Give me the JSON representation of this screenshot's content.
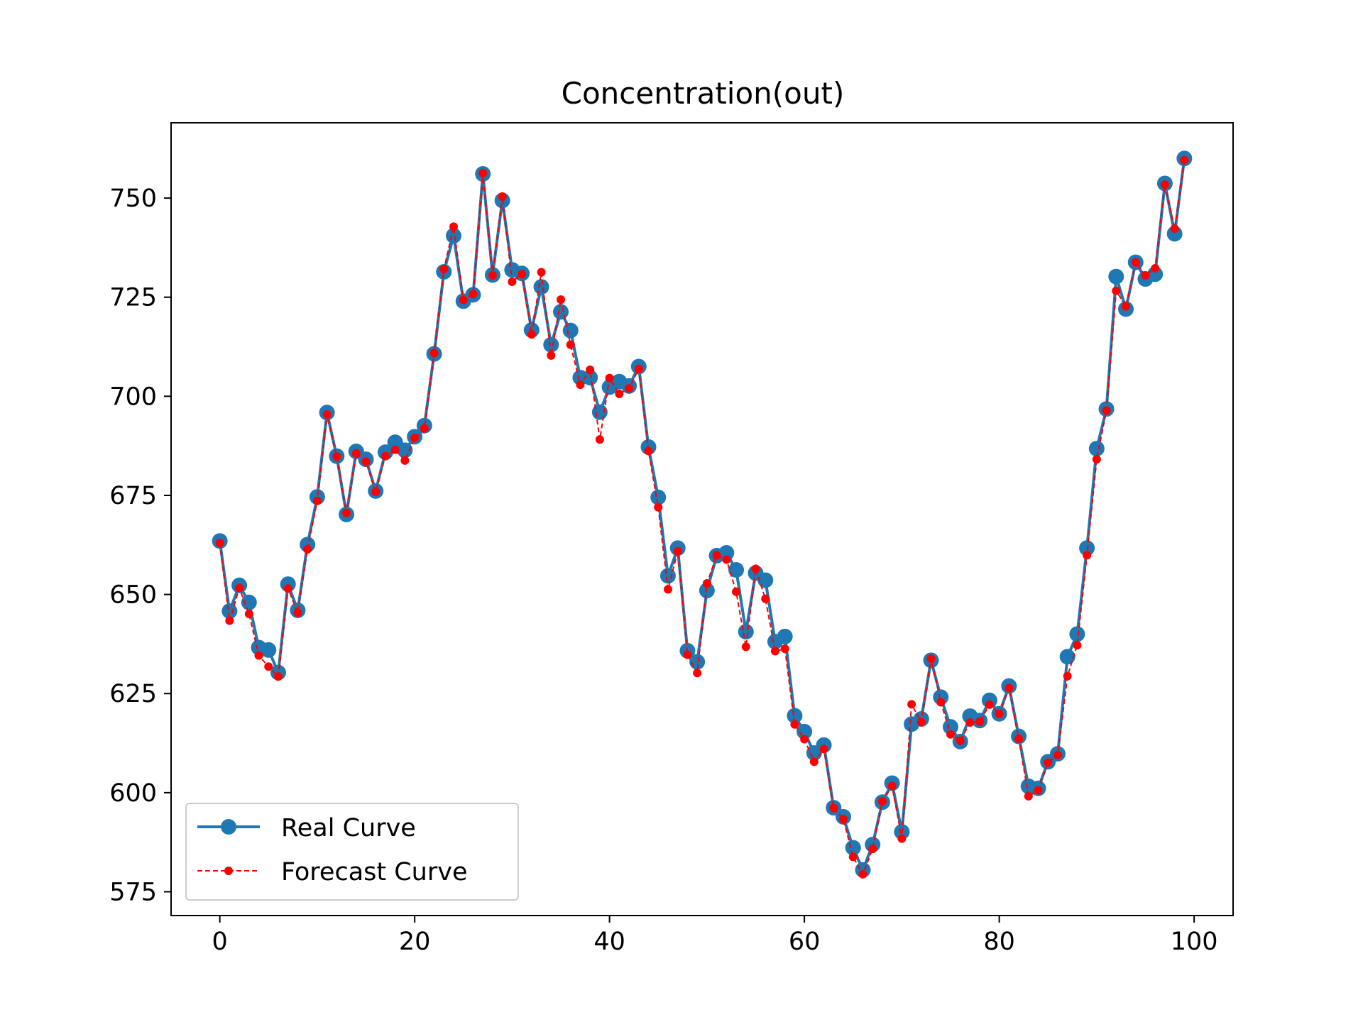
{
  "chart_data": {
    "type": "line",
    "title": "Concentration(out)",
    "xlabel": "",
    "ylabel": "",
    "xlim": [
      -5,
      104
    ],
    "ylim": [
      569,
      769
    ],
    "xticks": [
      0,
      20,
      40,
      60,
      80,
      100
    ],
    "yticks": [
      575,
      600,
      625,
      650,
      675,
      700,
      725,
      750
    ],
    "grid": false,
    "legend_position": "lower-left",
    "x": [
      0,
      1,
      2,
      3,
      4,
      5,
      6,
      7,
      8,
      9,
      10,
      11,
      12,
      13,
      14,
      15,
      16,
      17,
      18,
      19,
      20,
      21,
      22,
      23,
      24,
      25,
      26,
      27,
      28,
      29,
      30,
      31,
      32,
      33,
      34,
      35,
      36,
      37,
      38,
      39,
      40,
      41,
      42,
      43,
      44,
      45,
      46,
      47,
      48,
      49,
      50,
      51,
      52,
      53,
      54,
      55,
      56,
      57,
      58,
      59,
      60,
      61,
      62,
      63,
      64,
      65,
      66,
      67,
      68,
      69,
      70,
      71,
      72,
      73,
      74,
      75,
      76,
      77,
      78,
      79,
      80,
      81,
      82,
      83,
      84,
      85,
      86,
      87,
      88,
      89,
      90,
      91,
      92,
      93,
      94,
      95,
      96,
      97,
      98,
      99
    ],
    "series": [
      {
        "name": "Real Curve",
        "color": "#1f77b4",
        "style": "solid",
        "marker": "circle-large",
        "values": [
          663.5,
          645.8,
          652.3,
          648.0,
          636.6,
          636.0,
          630.3,
          652.6,
          646.0,
          662.6,
          674.6,
          695.9,
          684.9,
          670.2,
          686.1,
          684.1,
          676.1,
          685.9,
          688.4,
          686.4,
          689.8,
          692.6,
          710.7,
          731.4,
          740.5,
          724.0,
          725.6,
          756.1,
          730.6,
          749.4,
          731.9,
          731.0,
          716.7,
          727.6,
          713.0,
          721.3,
          716.6,
          704.7,
          704.7,
          696.0,
          702.3,
          703.7,
          702.6,
          707.5,
          687.2,
          674.5,
          654.7,
          661.7,
          635.8,
          633.0,
          651.0,
          659.8,
          660.5,
          656.2,
          640.6,
          655.4,
          653.6,
          638.1,
          639.4,
          619.4,
          615.4,
          610.0,
          612.0,
          596.2,
          593.9,
          586.1,
          580.5,
          586.9,
          597.6,
          602.4,
          590.1,
          617.3,
          618.6,
          633.4,
          624.1,
          616.6,
          612.9,
          619.3,
          618.2,
          623.3,
          619.9,
          626.9,
          614.2,
          601.6,
          601.1,
          607.8,
          609.8,
          634.3,
          640.0,
          661.7,
          686.8,
          696.8,
          730.2,
          722.0,
          733.8,
          729.6,
          730.8,
          753.7,
          741.0,
          760.0
        ]
      },
      {
        "name": "Forecast Curve",
        "color": "#ff0000",
        "style": "dashed",
        "marker": "circle-small",
        "values": [
          663.0,
          643.4,
          651.6,
          645.1,
          634.6,
          631.8,
          629.3,
          651.5,
          645.4,
          661.4,
          673.6,
          695.4,
          684.8,
          670.6,
          685.6,
          683.5,
          675.9,
          684.9,
          686.5,
          683.8,
          689.5,
          691.9,
          710.9,
          732.1,
          742.8,
          724.3,
          725.8,
          756.3,
          730.5,
          750.4,
          728.9,
          730.8,
          715.6,
          731.3,
          710.3,
          724.4,
          713.0,
          702.9,
          706.7,
          689.1,
          704.6,
          700.6,
          702.0,
          706.9,
          686.2,
          672.0,
          651.3,
          660.9,
          634.8,
          630.2,
          652.8,
          659.9,
          658.8,
          650.7,
          636.8,
          656.5,
          648.9,
          635.7,
          636.3,
          617.2,
          613.5,
          607.8,
          611.0,
          596.1,
          593.3,
          583.8,
          579.4,
          585.8,
          597.8,
          601.7,
          588.4,
          622.3,
          617.8,
          633.8,
          622.8,
          614.7,
          613.1,
          617.7,
          617.9,
          622.2,
          619.9,
          626.4,
          613.6,
          599.1,
          600.6,
          607.6,
          609.5,
          629.4,
          637.2,
          659.9,
          684.1,
          696.4,
          726.6,
          722.7,
          733.8,
          730.5,
          732.3,
          753.4,
          742.3,
          759.6
        ]
      }
    ]
  }
}
